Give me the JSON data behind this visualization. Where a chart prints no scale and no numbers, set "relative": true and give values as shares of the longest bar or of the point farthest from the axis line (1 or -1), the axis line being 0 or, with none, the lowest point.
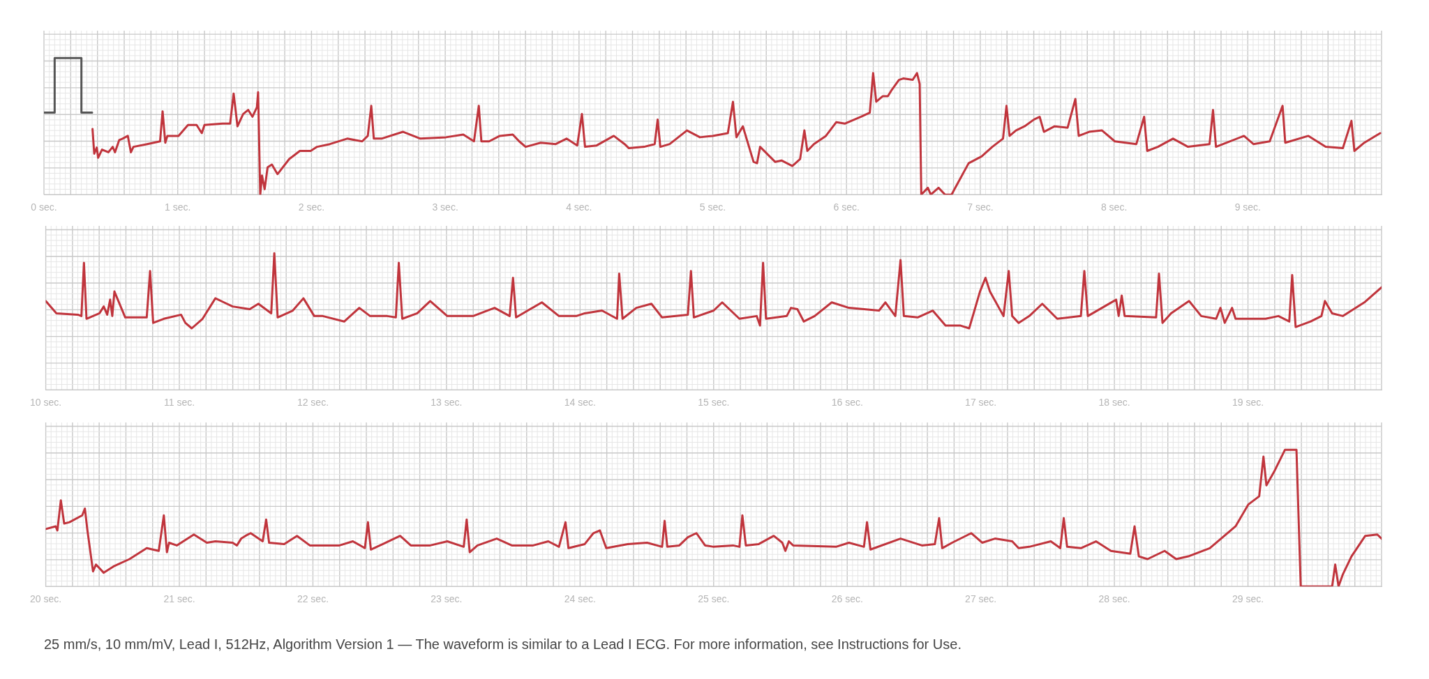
{
  "chart_data": [
    {
      "type": "line",
      "relative": true,
      "tick_labels": "x",
      "grid": true,
      "xlim": [
        0,
        10
      ],
      "xticks": [
        {
          "value": 0,
          "label": "0 sec."
        },
        {
          "value": 1,
          "label": "1 sec."
        },
        {
          "value": 2,
          "label": "2 sec."
        },
        {
          "value": 3,
          "label": "3 sec."
        },
        {
          "value": 4,
          "label": "4 sec."
        },
        {
          "value": 5,
          "label": "5 sec."
        },
        {
          "value": 6,
          "label": "6 sec."
        },
        {
          "value": 7,
          "label": "7 sec."
        },
        {
          "value": 8,
          "label": "8 sec."
        },
        {
          "value": 9,
          "label": "9 sec."
        }
      ],
      "series": [
        {
          "color": "#555555",
          "x": [
            0,
            0.08,
            0.08,
            0.28,
            0.28,
            0.36
          ],
          "values": [
            0.6,
            0.6,
            1.0,
            1.0,
            0.6,
            0.6
          ]
        },
        {
          "color": "#c0343c",
          "x": [
            0.363,
            0.376,
            0.395,
            0.405,
            0.434,
            0.482,
            0.514,
            0.531,
            0.563,
            0.588,
            0.627,
            0.65,
            0.669,
            0.772,
            0.868,
            0.887,
            0.907,
            0.923,
            1.006,
            1.077,
            1.141,
            1.18,
            1.2,
            1.335,
            1.392,
            1.418,
            1.447,
            1.489,
            1.527,
            1.559,
            1.592,
            1.601,
            1.617,
            1.63,
            1.65,
            1.672,
            1.704,
            1.746,
            1.833,
            1.913,
            1.994,
            2.042,
            2.138,
            2.267,
            2.379,
            2.421,
            2.447,
            2.466,
            2.524,
            2.685,
            2.814,
            3.006,
            3.135,
            3.215,
            3.251,
            3.27,
            3.328,
            3.408,
            3.505,
            3.553,
            3.601,
            3.714,
            3.826,
            3.907,
            3.987,
            4.022,
            4.045,
            4.132,
            4.26,
            4.341,
            4.373,
            4.486,
            4.566,
            4.588,
            4.608,
            4.678,
            4.807,
            4.904,
            5.0,
            5.113,
            5.151,
            5.177,
            5.225,
            5.305,
            5.331,
            5.354,
            5.466,
            5.514,
            5.595,
            5.653,
            5.685,
            5.707,
            5.756,
            5.846,
            5.923,
            5.987,
            6.109,
            6.174,
            6.199,
            6.222,
            6.27,
            6.309,
            6.334,
            6.392,
            6.424,
            6.495,
            6.527,
            6.547,
            6.559,
            6.608,
            6.63,
            6.688,
            6.737,
            6.785,
            6.913,
            7.01,
            7.09,
            7.17,
            7.196,
            7.219,
            7.267,
            7.331,
            7.402,
            7.444,
            7.476,
            7.556,
            7.653,
            7.711,
            7.736,
            7.814,
            7.91,
            8.006,
            8.167,
            8.225,
            8.248,
            8.328,
            8.441,
            8.553,
            8.714,
            8.74,
            8.762,
            8.842,
            8.971,
            9.042,
            9.164,
            9.26,
            9.28,
            9.453,
            9.582,
            9.711,
            9.775,
            9.797,
            9.871,
            9.99
          ],
          "values": [
            0.48,
            0.3,
            0.345,
            0.27,
            0.33,
            0.31,
            0.35,
            0.31,
            0.4,
            0.41,
            0.43,
            0.31,
            0.35,
            0.37,
            0.39,
            0.61,
            0.38,
            0.43,
            0.43,
            0.51,
            0.51,
            0.45,
            0.51,
            0.52,
            0.52,
            0.74,
            0.5,
            0.59,
            0.62,
            0.57,
            0.64,
            0.75,
            0.0,
            0.14,
            0.04,
            0.2,
            0.22,
            0.15,
            0.26,
            0.32,
            0.32,
            0.35,
            0.37,
            0.41,
            0.39,
            0.43,
            0.65,
            0.41,
            0.41,
            0.46,
            0.41,
            0.42,
            0.44,
            0.39,
            0.65,
            0.39,
            0.39,
            0.43,
            0.44,
            0.39,
            0.35,
            0.38,
            0.37,
            0.41,
            0.36,
            0.59,
            0.35,
            0.36,
            0.43,
            0.37,
            0.34,
            0.35,
            0.37,
            0.55,
            0.35,
            0.37,
            0.47,
            0.42,
            0.43,
            0.45,
            0.68,
            0.42,
            0.5,
            0.24,
            0.23,
            0.35,
            0.24,
            0.25,
            0.21,
            0.26,
            0.47,
            0.32,
            0.37,
            0.43,
            0.53,
            0.52,
            0.57,
            0.6,
            0.89,
            0.68,
            0.72,
            0.72,
            0.76,
            0.84,
            0.85,
            0.84,
            0.89,
            0.81,
            0.0,
            0.05,
            0.0,
            0.05,
            0.0,
            0.0,
            0.23,
            0.28,
            0.35,
            0.41,
            0.65,
            0.43,
            0.47,
            0.5,
            0.55,
            0.57,
            0.46,
            0.5,
            0.49,
            0.7,
            0.43,
            0.46,
            0.47,
            0.39,
            0.37,
            0.57,
            0.32,
            0.35,
            0.41,
            0.35,
            0.37,
            0.62,
            0.35,
            0.38,
            0.43,
            0.37,
            0.39,
            0.65,
            0.38,
            0.43,
            0.35,
            0.34,
            0.54,
            0.32,
            0.38,
            0.45
          ]
        }
      ]
    },
    {
      "type": "line",
      "relative": true,
      "tick_labels": "x",
      "grid": true,
      "xlim": [
        10,
        20
      ],
      "xticks": [
        {
          "value": 10,
          "label": "10 sec."
        },
        {
          "value": 11,
          "label": "11 sec."
        },
        {
          "value": 12,
          "label": "12 sec."
        },
        {
          "value": 13,
          "label": "13 sec."
        },
        {
          "value": 14,
          "label": "14 sec."
        },
        {
          "value": 15,
          "label": "15 sec."
        },
        {
          "value": 16,
          "label": "16 sec."
        },
        {
          "value": 17,
          "label": "17 sec."
        },
        {
          "value": 18,
          "label": "18 sec."
        },
        {
          "value": 19,
          "label": "19 sec."
        }
      ],
      "series": [
        {
          "color": "#c0343c",
          "x": [
            10.0,
            10.08,
            10.241,
            10.267,
            10.286,
            10.305,
            10.402,
            10.434,
            10.46,
            10.482,
            10.498,
            10.514,
            10.595,
            10.756,
            10.781,
            10.804,
            10.884,
            11.013,
            11.045,
            11.093,
            11.174,
            11.27,
            11.334,
            11.399,
            11.527,
            11.592,
            11.688,
            11.711,
            11.736,
            11.849,
            11.929,
            12.01,
            12.074,
            12.235,
            12.347,
            12.428,
            12.556,
            12.621,
            12.643,
            12.669,
            12.781,
            12.878,
            13.006,
            13.199,
            13.36,
            13.473,
            13.498,
            13.521,
            13.714,
            13.842,
            13.971,
            14.035,
            14.164,
            14.277,
            14.293,
            14.318,
            14.421,
            14.534,
            14.614,
            14.807,
            14.83,
            14.852,
            15.0,
            15.064,
            15.193,
            15.322,
            15.347,
            15.37,
            15.392,
            15.547,
            15.579,
            15.627,
            15.675,
            15.756,
            15.884,
            16.013,
            16.238,
            16.286,
            16.36,
            16.399,
            16.424,
            16.527,
            16.64,
            16.736,
            16.849,
            16.913,
            16.994,
            17.035,
            17.068,
            17.17,
            17.209,
            17.235,
            17.283,
            17.363,
            17.46,
            17.572,
            17.749,
            17.775,
            17.801,
            18.013,
            18.032,
            18.055,
            18.077,
            18.312,
            18.334,
            18.36,
            18.424,
            18.559,
            18.65,
            18.762,
            18.794,
            18.826,
            18.881,
            18.907,
            19.132,
            19.228,
            19.309,
            19.331,
            19.357,
            19.469,
            19.55,
            19.576,
            19.63,
            19.711,
            19.871,
            20.0
          ],
          "values": [
            0.65,
            0.56,
            0.55,
            0.54,
            0.93,
            0.52,
            0.56,
            0.61,
            0.55,
            0.66,
            0.54,
            0.72,
            0.53,
            0.53,
            0.87,
            0.49,
            0.52,
            0.55,
            0.49,
            0.45,
            0.52,
            0.67,
            0.64,
            0.61,
            0.59,
            0.63,
            0.56,
            1.0,
            0.53,
            0.58,
            0.67,
            0.54,
            0.54,
            0.5,
            0.6,
            0.54,
            0.54,
            0.53,
            0.93,
            0.52,
            0.56,
            0.65,
            0.54,
            0.54,
            0.6,
            0.54,
            0.82,
            0.53,
            0.64,
            0.54,
            0.54,
            0.56,
            0.58,
            0.52,
            0.85,
            0.52,
            0.6,
            0.63,
            0.53,
            0.55,
            0.87,
            0.53,
            0.58,
            0.64,
            0.52,
            0.54,
            0.47,
            0.93,
            0.52,
            0.54,
            0.6,
            0.59,
            0.5,
            0.54,
            0.64,
            0.6,
            0.58,
            0.64,
            0.54,
            0.95,
            0.54,
            0.53,
            0.58,
            0.47,
            0.47,
            0.45,
            0.72,
            0.82,
            0.72,
            0.54,
            0.87,
            0.54,
            0.49,
            0.54,
            0.63,
            0.52,
            0.54,
            0.87,
            0.54,
            0.66,
            0.54,
            0.69,
            0.54,
            0.53,
            0.85,
            0.49,
            0.56,
            0.65,
            0.54,
            0.52,
            0.6,
            0.49,
            0.6,
            0.52,
            0.52,
            0.54,
            0.5,
            0.84,
            0.46,
            0.5,
            0.54,
            0.65,
            0.56,
            0.54,
            0.64,
            0.75
          ]
        }
      ]
    },
    {
      "type": "line",
      "relative": true,
      "tick_labels": "x",
      "grid": true,
      "xlim": [
        20,
        30
      ],
      "xticks": [
        {
          "value": 20,
          "label": "20 sec."
        },
        {
          "value": 21,
          "label": "21 sec."
        },
        {
          "value": 22,
          "label": "22 sec."
        },
        {
          "value": 23,
          "label": "23 sec."
        },
        {
          "value": 24,
          "label": "24 sec."
        },
        {
          "value": 25,
          "label": "25 sec."
        },
        {
          "value": 26,
          "label": "26 sec."
        },
        {
          "value": 27,
          "label": "27 sec."
        },
        {
          "value": 28,
          "label": "28 sec."
        },
        {
          "value": 29,
          "label": "29 sec."
        }
      ],
      "annotations": [
        "25 mm/s, 10 mm/mV, Lead I, 512Hz, Algorithm Version 1 — The waveform is similar to a Lead I ECG. For more information, see Instructions for Use."
      ],
      "series": [
        {
          "color": "#c0343c",
          "x": [
            20.0,
            20.074,
            20.087,
            20.113,
            20.138,
            20.177,
            20.273,
            20.293,
            20.312,
            20.354,
            20.376,
            20.434,
            20.514,
            20.627,
            20.756,
            20.846,
            20.884,
            20.907,
            20.923,
            20.981,
            21.109,
            21.206,
            21.27,
            21.399,
            21.431,
            21.463,
            21.495,
            21.534,
            21.624,
            21.65,
            21.672,
            21.785,
            21.881,
            21.977,
            22.199,
            22.299,
            22.389,
            22.412,
            22.434,
            22.524,
            22.653,
            22.733,
            22.878,
            23.006,
            23.129,
            23.151,
            23.174,
            23.232,
            23.376,
            23.489,
            23.649,
            23.762,
            23.842,
            23.891,
            23.913,
            24.035,
            24.1,
            24.148,
            24.196,
            24.357,
            24.502,
            24.614,
            24.633,
            24.653,
            24.743,
            24.807,
            24.871,
            24.936,
            25.0,
            25.145,
            25.193,
            25.215,
            25.241,
            25.338,
            25.45,
            25.514,
            25.537,
            25.563,
            25.595,
            25.916,
            26.013,
            26.125,
            26.148,
            26.174,
            26.399,
            26.559,
            26.656,
            26.688,
            26.711,
            26.785,
            26.929,
            27.01,
            27.106,
            27.235,
            27.283,
            27.363,
            27.524,
            27.595,
            27.621,
            27.646,
            27.749,
            27.862,
            27.974,
            28.119,
            28.151,
            28.183,
            28.248,
            28.376,
            28.463,
            28.553,
            28.714,
            28.907,
            29.003,
            29.084,
            29.116,
            29.138,
            29.196,
            29.277,
            29.363,
            29.395,
            29.63,
            29.653,
            29.678,
            29.711,
            29.775,
            29.878,
            29.968,
            30.0
          ],
          "values": [
            0.42,
            0.44,
            0.41,
            0.63,
            0.46,
            0.47,
            0.52,
            0.57,
            0.41,
            0.11,
            0.16,
            0.1,
            0.15,
            0.2,
            0.28,
            0.26,
            0.52,
            0.25,
            0.32,
            0.3,
            0.38,
            0.32,
            0.33,
            0.32,
            0.3,
            0.35,
            0.37,
            0.39,
            0.33,
            0.49,
            0.32,
            0.31,
            0.37,
            0.3,
            0.3,
            0.33,
            0.28,
            0.47,
            0.27,
            0.31,
            0.37,
            0.3,
            0.3,
            0.33,
            0.29,
            0.49,
            0.25,
            0.3,
            0.35,
            0.3,
            0.3,
            0.33,
            0.29,
            0.47,
            0.28,
            0.31,
            0.39,
            0.41,
            0.28,
            0.31,
            0.32,
            0.29,
            0.48,
            0.29,
            0.3,
            0.36,
            0.39,
            0.3,
            0.29,
            0.3,
            0.29,
            0.52,
            0.3,
            0.31,
            0.37,
            0.32,
            0.26,
            0.33,
            0.3,
            0.29,
            0.32,
            0.29,
            0.47,
            0.27,
            0.35,
            0.3,
            0.31,
            0.5,
            0.28,
            0.32,
            0.39,
            0.32,
            0.35,
            0.33,
            0.28,
            0.29,
            0.33,
            0.28,
            0.5,
            0.29,
            0.28,
            0.33,
            0.26,
            0.24,
            0.44,
            0.22,
            0.2,
            0.26,
            0.2,
            0.22,
            0.28,
            0.44,
            0.6,
            0.66,
            0.95,
            0.74,
            0.84,
            1.0,
            1.0,
            0.0,
            0.0,
            0.16,
            0.0,
            0.09,
            0.22,
            0.37,
            0.38,
            0.35
          ]
        }
      ]
    }
  ]
}
